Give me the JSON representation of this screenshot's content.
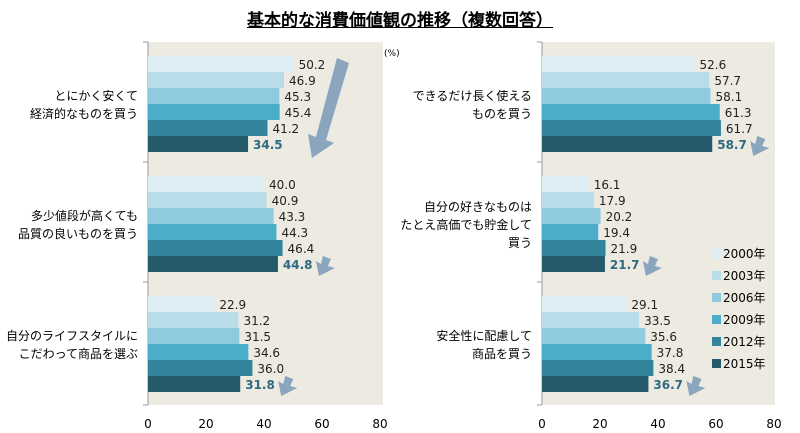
{
  "chart_data": {
    "type": "bar",
    "title": "基本的な消費価値観の推移（複数回答）",
    "unit": "(%)",
    "xlim": [
      0,
      80
    ],
    "xticks": [
      0,
      20,
      40,
      60,
      80
    ],
    "series_names": [
      "2000年",
      "2003年",
      "2006年",
      "2009年",
      "2012年",
      "2015年"
    ],
    "colors": [
      "#dcedf3",
      "#b8dde8",
      "#90cade",
      "#4aaec8",
      "#32849c",
      "#245a6a"
    ],
    "panels": [
      {
        "categories": [
          {
            "label": [
              "とにかく安くて",
              "経済的なものを買う"
            ],
            "values": [
              50.2,
              46.9,
              45.3,
              45.4,
              41.2,
              34.5
            ]
          },
          {
            "label": [
              "多少値段が高くても",
              "品質の良いものを買う"
            ],
            "values": [
              40.0,
              40.9,
              43.3,
              44.3,
              46.4,
              44.8
            ]
          },
          {
            "label": [
              "自分のライフスタイルに",
              "こだわって商品を選ぶ"
            ],
            "values": [
              22.9,
              31.2,
              31.5,
              34.6,
              36.0,
              31.8
            ]
          }
        ]
      },
      {
        "categories": [
          {
            "label": [
              "できるだけ長く使える",
              "ものを買う"
            ],
            "values": [
              52.6,
              57.7,
              58.1,
              61.3,
              61.7,
              58.7
            ]
          },
          {
            "label": [
              "自分の好きなものは",
              "たとえ高価でも貯金して",
              "買う"
            ],
            "values": [
              16.1,
              17.9,
              20.2,
              19.4,
              21.9,
              21.7
            ]
          },
          {
            "label": [
              "安全性に配慮して",
              "商品を買う"
            ],
            "values": [
              29.1,
              33.5,
              35.6,
              37.8,
              38.4,
              36.7
            ]
          }
        ]
      }
    ]
  }
}
